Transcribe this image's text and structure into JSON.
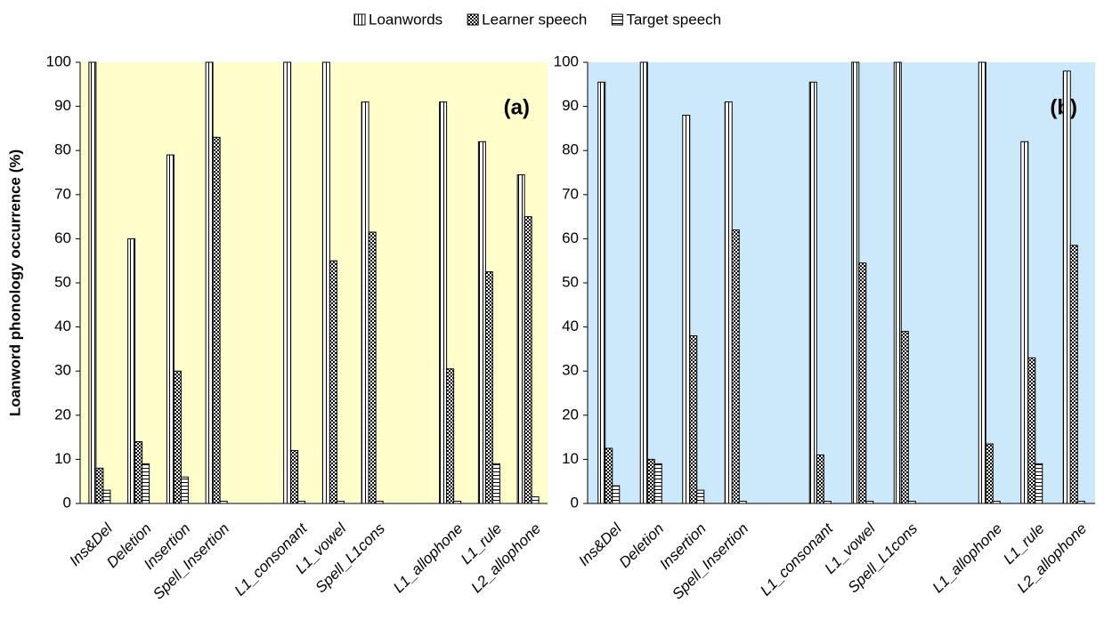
{
  "chart_data": [
    {
      "type": "bar",
      "y_label": "Loanword phonology occurrence (%)",
      "annotation": "(a)",
      "background": "#ffffcc",
      "categories": [
        "Ins&Del",
        "Deletion",
        "Insertion",
        "Spell_Insertion",
        null,
        "L1_consonant",
        "L1_vowel",
        "Spell_L1cons",
        null,
        "L1_allophone",
        "L1_rule",
        "L2_allophone"
      ],
      "series": [
        {
          "name": "Loanwords",
          "color": "#000000",
          "pattern": "vertical",
          "values": [
            100,
            60,
            79,
            100,
            null,
            100,
            100,
            91,
            null,
            91,
            82,
            74.5
          ]
        },
        {
          "name": "Learner speech",
          "color": "#000000",
          "pattern": "checker",
          "values": [
            8,
            14,
            30,
            83,
            null,
            12,
            55,
            61.5,
            null,
            30.5,
            52.5,
            65
          ]
        },
        {
          "name": "Target speech",
          "color": "#000000",
          "pattern": "horizontal",
          "values": [
            3,
            9,
            6,
            0.5,
            null,
            0.5,
            0.5,
            0.5,
            null,
            0.5,
            9,
            1.5
          ]
        }
      ],
      "ylim": [
        0,
        100
      ],
      "yticks": [
        0,
        10,
        20,
        30,
        40,
        50,
        60,
        70,
        80,
        90,
        100
      ],
      "grid": false
    },
    {
      "type": "bar",
      "annotation": "(b)",
      "background": "#cce9fb",
      "categories": [
        "Ins&Del",
        "Deletion",
        "Insertion",
        "Spell_Insertion",
        null,
        "L1_consonant",
        "L1_vowel",
        "Spell_L1cons",
        null,
        "L1_allophone",
        "L1_rule",
        "L2_allophone"
      ],
      "series": [
        {
          "color": "#000000",
          "pattern": "vertical",
          "values": [
            95.5,
            100,
            88,
            91,
            null,
            95.5,
            100,
            100,
            null,
            100,
            82,
            98
          ]
        },
        {
          "color": "#000000",
          "pattern": "checker",
          "values": [
            12.5,
            10,
            38,
            62,
            null,
            11,
            54.5,
            39,
            null,
            13.5,
            33,
            58.5
          ]
        },
        {
          "color": "#000000",
          "pattern": "horizontal",
          "values": [
            4,
            9,
            3,
            0.5,
            null,
            0.5,
            0.5,
            0.5,
            null,
            0.5,
            9,
            0.5
          ]
        }
      ],
      "ylim": [
        0,
        100
      ],
      "yticks": [
        0,
        10,
        20,
        30,
        40,
        50,
        60,
        70,
        80,
        90,
        100
      ],
      "grid": false
    }
  ]
}
